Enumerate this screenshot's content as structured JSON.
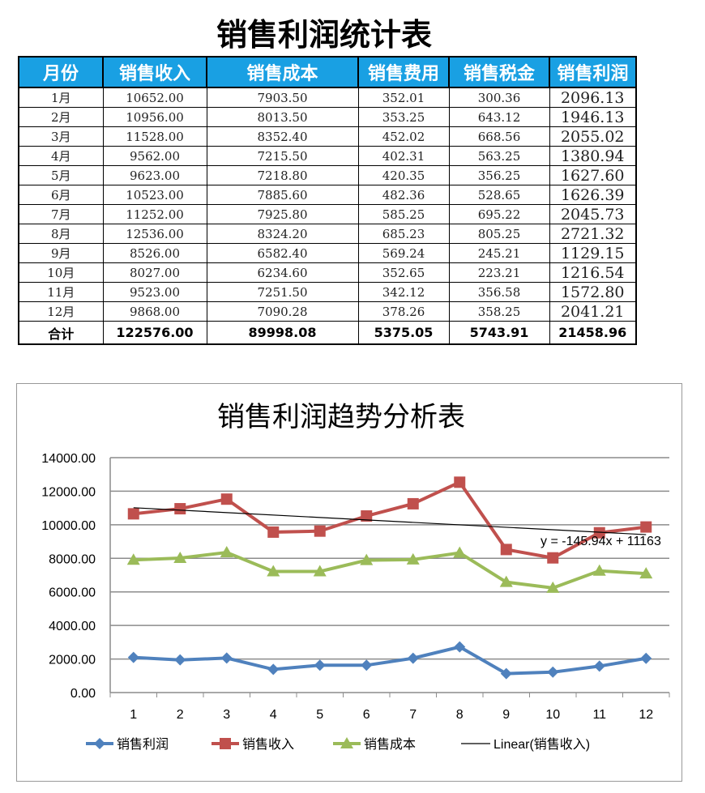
{
  "table": {
    "title": "销售利润统计表",
    "headers": [
      "月份",
      "销售收入",
      "销售成本",
      "销售费用",
      "销售税金",
      "销售利润"
    ],
    "rows": [
      [
        "1月",
        "10652.00",
        "7903.50",
        "352.01",
        "300.36",
        "2096.13"
      ],
      [
        "2月",
        "10956.00",
        "8013.50",
        "353.25",
        "643.12",
        "1946.13"
      ],
      [
        "3月",
        "11528.00",
        "8352.40",
        "452.02",
        "668.56",
        "2055.02"
      ],
      [
        "4月",
        "9562.00",
        "7215.50",
        "402.31",
        "563.25",
        "1380.94"
      ],
      [
        "5月",
        "9623.00",
        "7218.80",
        "420.35",
        "356.25",
        "1627.60"
      ],
      [
        "6月",
        "10523.00",
        "7885.60",
        "482.36",
        "528.65",
        "1626.39"
      ],
      [
        "7月",
        "11252.00",
        "7925.80",
        "585.25",
        "695.22",
        "2045.73"
      ],
      [
        "8月",
        "12536.00",
        "8324.20",
        "685.23",
        "805.25",
        "2721.32"
      ],
      [
        "9月",
        "8526.00",
        "6582.40",
        "569.24",
        "245.21",
        "1129.15"
      ],
      [
        "10月",
        "8027.00",
        "6234.60",
        "352.65",
        "223.21",
        "1216.54"
      ],
      [
        "11月",
        "9523.00",
        "7251.50",
        "342.12",
        "356.58",
        "1572.80"
      ],
      [
        "12月",
        "9868.00",
        "7090.28",
        "378.26",
        "358.25",
        "2041.21"
      ]
    ],
    "total": [
      "合计",
      "122576.00",
      "89998.08",
      "5375.05",
      "5743.91",
      "21458.96"
    ]
  },
  "chart_data": {
    "type": "line",
    "title": "销售利润趋势分析表",
    "categories": [
      "1",
      "2",
      "3",
      "4",
      "5",
      "6",
      "7",
      "8",
      "9",
      "10",
      "11",
      "12"
    ],
    "ylim": [
      0,
      14000
    ],
    "yticks": [
      "0.00",
      "2000.00",
      "4000.00",
      "6000.00",
      "8000.00",
      "10000.00",
      "12000.00",
      "14000.00"
    ],
    "grid": true,
    "legend_position": "bottom",
    "series": [
      {
        "name": "销售利润",
        "color": "#4f81bd",
        "marker": "diamond",
        "values": [
          2096.13,
          1946.13,
          2055.02,
          1380.94,
          1627.6,
          1626.39,
          2045.73,
          2721.32,
          1129.15,
          1216.54,
          1572.8,
          2041.21
        ]
      },
      {
        "name": "销售收入",
        "color": "#c0504d",
        "marker": "square",
        "values": [
          10652,
          10956,
          11528,
          9562,
          9623,
          10523,
          11252,
          12536,
          8526,
          8027,
          9523,
          9868
        ]
      },
      {
        "name": "销售成本",
        "color": "#9bbb59",
        "marker": "triangle",
        "values": [
          7903.5,
          8013.5,
          8352.4,
          7215.5,
          7218.8,
          7885.6,
          7925.8,
          8324.2,
          6582.4,
          6234.6,
          7251.5,
          7090.28
        ]
      }
    ],
    "trendline": {
      "name": "Linear(销售收入)",
      "slope": -145.94,
      "intercept": 11163,
      "label": "y =  -145.94x + 11163",
      "color": "#000000"
    }
  }
}
